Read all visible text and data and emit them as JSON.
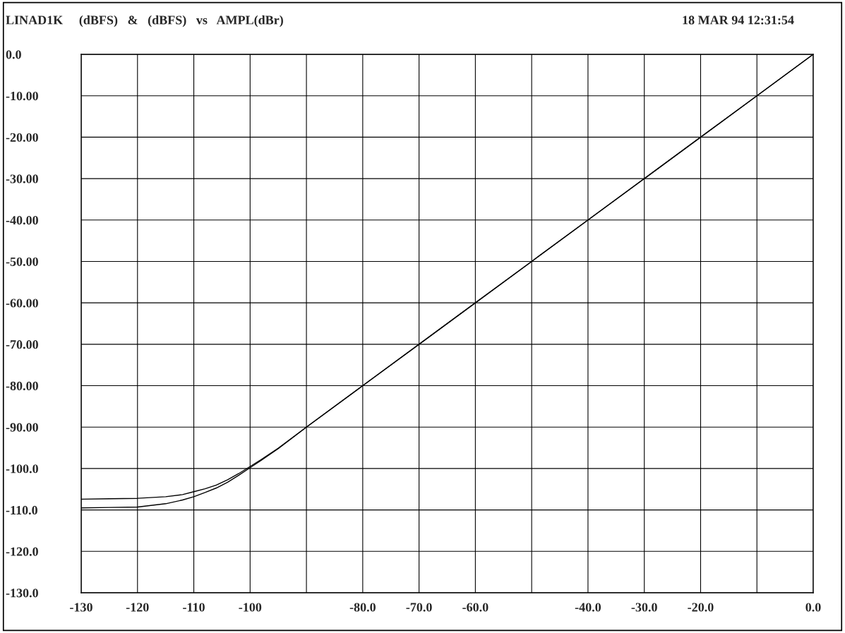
{
  "chart_data": {
    "type": "line",
    "title": "LINAD1K     (dBFS)   &   (dBFS)   vs   AMPL(dBr)",
    "annotations": [
      "18 MAR 94 12:31:54"
    ],
    "series": [
      {
        "color": "#000000",
        "x": [
          -130,
          -125,
          -120,
          -115,
          -112,
          -110,
          -108,
          -106,
          -104,
          -102,
          -100,
          -98,
          -95,
          -90,
          -80,
          -70,
          -60,
          -50,
          -40,
          -30,
          -20,
          -10,
          0
        ],
        "values": [
          -107.4,
          -107.3,
          -107.2,
          -106.8,
          -106.3,
          -105.6,
          -104.9,
          -104.0,
          -102.7,
          -101.2,
          -99.5,
          -97.8,
          -95.1,
          -90,
          -80,
          -70,
          -60,
          -50,
          -40,
          -30,
          -20,
          -10,
          0
        ]
      },
      {
        "color": "#000000",
        "x": [
          -130,
          -125,
          -120,
          -115,
          -112,
          -110,
          -108,
          -106,
          -104,
          -102,
          -100,
          -98,
          -95,
          -90,
          -80,
          -70,
          -60,
          -50,
          -40,
          -30,
          -20,
          -10,
          0
        ],
        "values": [
          -109.5,
          -109.4,
          -109.3,
          -108.5,
          -107.6,
          -106.8,
          -105.8,
          -104.7,
          -103.3,
          -101.6,
          -99.8,
          -98.0,
          -95.2,
          -90,
          -80,
          -70,
          -60,
          -50,
          -40,
          -30,
          -20,
          -10,
          0
        ]
      }
    ],
    "xlim": [
      -130,
      0
    ],
    "ylim": [
      -130,
      0
    ],
    "xticks": [
      -130,
      -120,
      -110,
      -100,
      {
        "value": -90,
        "label": null
      },
      "-80.0",
      "-70.0",
      "-60.0",
      {
        "value": -50,
        "label": null
      },
      "-40.0",
      "-30.0",
      "-20.0",
      {
        "value": -10,
        "label": null
      },
      "0.0"
    ],
    "yticks": [
      {
        "value": 0,
        "label": "0.0"
      },
      {
        "value": -10,
        "label": "-10.00"
      },
      {
        "value": -20,
        "label": "-20.00"
      },
      {
        "value": -30,
        "label": "-30.00"
      },
      {
        "value": -40,
        "label": "-40.00"
      },
      {
        "value": -50,
        "label": "-50.00"
      },
      {
        "value": -60,
        "label": "-60.00"
      },
      {
        "value": -70,
        "label": "-70.00"
      },
      {
        "value": -80,
        "label": "-80.00"
      },
      {
        "value": -90,
        "label": "-90.00"
      },
      {
        "value": -100,
        "label": "-100.0"
      },
      {
        "value": -110,
        "label": "-110.0"
      },
      {
        "value": -120,
        "label": "-120.0"
      },
      {
        "value": -130,
        "label": "-130.0"
      }
    ],
    "grid": true,
    "line_style": "solid"
  }
}
